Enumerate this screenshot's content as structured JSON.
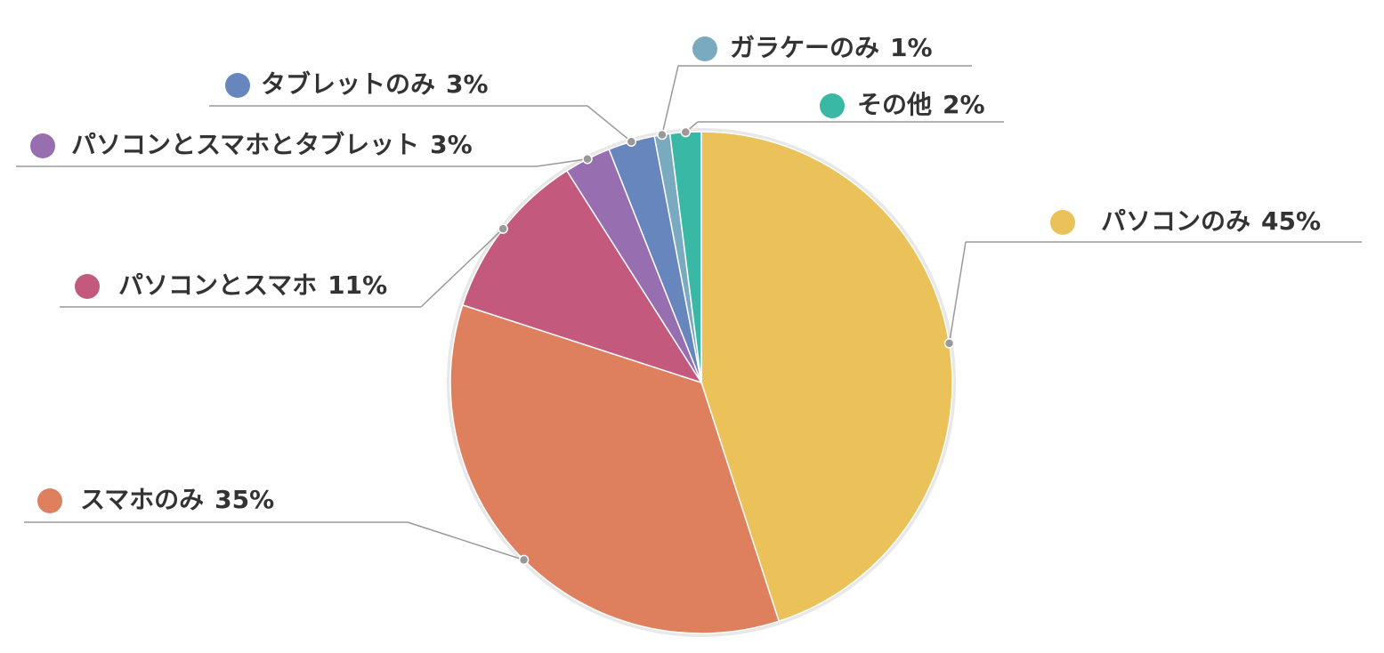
{
  "chart_data": {
    "type": "pie",
    "categories": [
      "パソコンのみ",
      "スマホのみ",
      "パソコンとスマホ",
      "パソコンとスマホとタブレット",
      "タブレットのみ",
      "ガラケーのみ",
      "その他"
    ],
    "values": [
      45,
      35,
      11,
      3,
      3,
      1,
      2
    ],
    "value_labels": [
      "45%",
      "35%",
      "11%",
      "3%",
      "3%",
      "1%",
      "2%"
    ],
    "colors": [
      "#ebc25a",
      "#de805d",
      "#c4597e",
      "#976eb0",
      "#6886be",
      "#7aaabf",
      "#3ab8a6"
    ]
  }
}
